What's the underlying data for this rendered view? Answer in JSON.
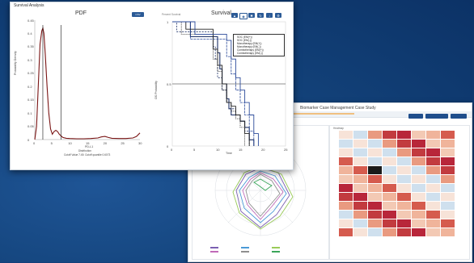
{
  "front_window": {
    "title": "Survival Analysis",
    "pdf_panel": {
      "title": "PDF",
      "button": "CSV",
      "ylabel": "Probability Density",
      "xlabel": "PD-L1",
      "y_ticks": [
        "0",
        "0.05",
        "0.1",
        "0.15",
        "0.2",
        "0.25",
        "0.3",
        "0.35",
        "0.4",
        "0.45"
      ],
      "x_ticks": [
        "0",
        "5",
        "10",
        "15",
        "20",
        "25",
        "30"
      ],
      "legend": "Distribution",
      "cutoff_text": "Cutoff Value 7.45: Cutoff quantile 0.6073"
    },
    "survival_panel": {
      "title": "Survival",
      "label_tl": "Percent Survival",
      "ylabel": "OS Probability",
      "xlabel": "Time",
      "y_ticks": [
        "0",
        "0.5",
        "1"
      ],
      "x_ticks": [
        "0",
        "5",
        "10",
        "15",
        "20",
        "25"
      ],
      "legend": [
        "SOC (EM(+))",
        "SOC (EM(-))",
        "Monotherapy (EM(+))",
        "Monotherapy (EM(-))",
        "Combotherapy (EM(+))",
        "Combotherapy (EM(-))"
      ]
    }
  },
  "back_window": {
    "title": "Biomarker Case Management Case Study",
    "panel_label": "Heatmap",
    "heatmap_row_labels": [
      "",
      "",
      "",
      "",
      "",
      "",
      "",
      "",
      "",
      "",
      "",
      ""
    ]
  },
  "chart_data": [
    {
      "type": "line",
      "title": "PDF",
      "xlabel": "PD-L1",
      "ylabel": "Probability Density",
      "xlim": [
        0,
        30
      ],
      "ylim": [
        0,
        0.45
      ],
      "series": [
        {
          "name": "Distribution",
          "x": [
            0,
            0.5,
            1,
            1.5,
            2,
            2.3,
            2.6,
            3,
            3.5,
            4,
            4.5,
            5,
            5.5,
            6,
            6.5,
            7,
            8,
            9,
            10,
            12,
            14,
            16,
            18,
            19,
            20,
            21,
            22,
            24,
            26,
            28,
            29,
            30
          ],
          "y": [
            0,
            0.05,
            0.2,
            0.36,
            0.41,
            0.42,
            0.4,
            0.32,
            0.2,
            0.1,
            0.04,
            0.02,
            0.03,
            0.035,
            0.03,
            0.02,
            0.008,
            0.005,
            0.004,
            0.003,
            0.003,
            0.004,
            0.006,
            0.01,
            0.012,
            0.008,
            0.005,
            0.004,
            0.004,
            0.006,
            0.012,
            0.025
          ]
        }
      ],
      "annotations": [
        "Cutoff Value 7.45: Cutoff quantile 0.6073"
      ]
    },
    {
      "type": "line",
      "title": "Survival",
      "xlabel": "Time",
      "ylabel": "OS Probability",
      "xlim": [
        0,
        25
      ],
      "ylim": [
        0,
        1
      ],
      "series": [
        {
          "name": "SOC (EM(+))",
          "x": [
            0,
            4,
            9,
            10,
            10.5,
            11,
            12,
            12.5,
            13,
            14,
            15,
            16,
            17,
            18
          ],
          "y": [
            1,
            0.88,
            0.88,
            0.75,
            0.62,
            0.5,
            0.38,
            0.3,
            0.25,
            0.25,
            0.2,
            0.15,
            0.05,
            0
          ]
        },
        {
          "name": "SOC (EM(-))",
          "x": [
            0,
            1,
            8,
            9,
            9.5,
            10,
            11,
            12,
            13,
            14,
            15,
            16,
            17
          ],
          "y": [
            1,
            0.92,
            0.92,
            0.8,
            0.7,
            0.55,
            0.45,
            0.35,
            0.3,
            0.25,
            0.2,
            0.12,
            0
          ]
        },
        {
          "name": "Monotherapy (EM(+))",
          "x": [
            0,
            3,
            8,
            9,
            10,
            11,
            12,
            13,
            14,
            15,
            16,
            17
          ],
          "y": [
            1,
            0.94,
            0.94,
            0.78,
            0.65,
            0.5,
            0.35,
            0.32,
            0.25,
            0.2,
            0.1,
            0
          ]
        },
        {
          "name": "Monotherapy (EM(-))",
          "x": [
            0,
            2,
            8,
            9,
            10,
            11,
            12,
            13,
            14,
            15,
            16
          ],
          "y": [
            1,
            0.9,
            0.9,
            0.7,
            0.6,
            0.45,
            0.35,
            0.28,
            0.22,
            0.15,
            0
          ]
        },
        {
          "name": "Combotherapy (EM(+))",
          "x": [
            0,
            5,
            10,
            12,
            13,
            14,
            15,
            16,
            17,
            18,
            19
          ],
          "y": [
            1,
            0.9,
            0.9,
            0.85,
            0.7,
            0.55,
            0.45,
            0.35,
            0.25,
            0.1,
            0
          ]
        },
        {
          "name": "Combotherapy (EM(-))",
          "x": [
            0,
            4,
            11,
            12,
            13,
            14,
            15,
            16,
            17,
            18
          ],
          "y": [
            1,
            0.86,
            0.86,
            0.72,
            0.58,
            0.45,
            0.35,
            0.25,
            0.12,
            0
          ]
        }
      ]
    }
  ]
}
